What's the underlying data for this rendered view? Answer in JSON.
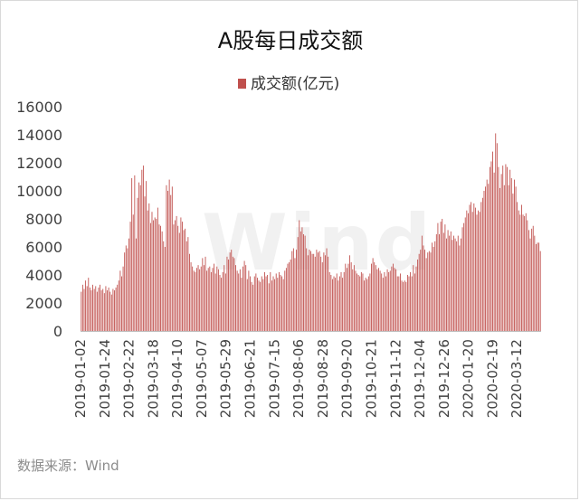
{
  "watermark": "Wind",
  "source": "数据来源：Wind",
  "chart_data": {
    "type": "bar",
    "title": "A股每日成交额",
    "series": [
      {
        "name": "成交额(亿元)",
        "color": "#c0504d"
      }
    ],
    "y_ticks": [
      "0",
      "2000",
      "4000",
      "6000",
      "8000",
      "10000",
      "12000",
      "14000",
      "16000"
    ],
    "ylim": [
      0,
      16000
    ],
    "x_tick_labels": [
      "2019-01-02",
      "2019-01-24",
      "2019-02-22",
      "2019-03-18",
      "2019-04-10",
      "2019-05-07",
      "2019-05-29",
      "2019-06-21",
      "2019-07-15",
      "2019-08-06",
      "2019-08-28",
      "2019-09-20",
      "2019-10-21",
      "2019-11-12",
      "2019-12-04",
      "2019-12-26",
      "2020-01-20",
      "2020-02-19",
      "2020-03-12"
    ],
    "values": [
      2800,
      3300,
      3000,
      3600,
      3200,
      3800,
      3100,
      2900,
      3300,
      3000,
      3200,
      2800,
      3100,
      3300,
      2900,
      3000,
      2700,
      3200,
      2900,
      3100,
      2800,
      2600,
      3000,
      2900,
      3100,
      3300,
      3600,
      4300,
      3900,
      4600,
      5600,
      6100,
      5900,
      6600,
      7800,
      10900,
      8300,
      11100,
      6600,
      9500,
      10600,
      10400,
      11500,
      11800,
      9600,
      10700,
      8600,
      9100,
      7700,
      8500,
      7900,
      8100,
      8000,
      8800,
      7600,
      7500,
      7100,
      6400,
      6000,
      10400,
      10000,
      10800,
      9700,
      10300,
      7600,
      7900,
      8200,
      7500,
      7000,
      8100,
      7800,
      7200,
      7300,
      6400,
      6700,
      5500,
      4900,
      4600,
      4300,
      4200,
      4500,
      4700,
      4400,
      4600,
      5200,
      4700,
      5300,
      4300,
      4500,
      4600,
      4200,
      4500,
      4800,
      4100,
      4600,
      4400,
      4000,
      3800,
      4200,
      4700,
      4100,
      5300,
      5100,
      5600,
      5800,
      5300,
      5200,
      4700,
      4300,
      4100,
      4400,
      3800,
      4600,
      5000,
      4700,
      3700,
      4300,
      3900,
      3500,
      3300,
      3900,
      4100,
      3800,
      3600,
      3500,
      3900,
      3700,
      4200,
      3900,
      4000,
      3400,
      4200,
      3600,
      3900,
      3700,
      4100,
      3800,
      4200,
      4000,
      3900,
      3700,
      4300,
      4500,
      4800,
      4900,
      5100,
      5700,
      5900,
      5200,
      5800,
      6700,
      7900,
      7100,
      7400,
      6900,
      6800,
      5900,
      5400,
      5800,
      5700,
      5500,
      5500,
      5300,
      5800,
      5600,
      5700,
      5300,
      4900,
      5600,
      5400,
      5900,
      5300,
      4200,
      4000,
      3700,
      3900,
      3800,
      4100,
      3600,
      3900,
      4200,
      3800,
      4200,
      4800,
      4500,
      4800,
      5400,
      4900,
      4400,
      4700,
      4300,
      4100,
      4000,
      3900,
      4200,
      4100,
      3600,
      3800,
      3700,
      3900,
      4100,
      4800,
      5200,
      4900,
      4700,
      4400,
      4500,
      4300,
      4100,
      3800,
      4200,
      3900,
      4400,
      4200,
      4300,
      4600,
      4800,
      4500,
      4400,
      3900,
      3900,
      4100,
      3600,
      3500,
      3600,
      3500,
      4000,
      3900,
      4200,
      3900,
      4700,
      4100,
      4600,
      5100,
      5500,
      5800,
      6800,
      6100,
      5800,
      5200,
      5600,
      5700,
      5600,
      6300,
      6000,
      6400,
      6900,
      7700,
      6900,
      7800,
      8000,
      7000,
      7600,
      6600,
      7200,
      6800,
      7100,
      6500,
      6800,
      6600,
      6400,
      6800,
      6100,
      6600,
      7400,
      7700,
      8100,
      8600,
      8400,
      9000,
      9200,
      8500,
      9100,
      8800,
      8300,
      8600,
      8500,
      9200,
      9500,
      10000,
      10300,
      10800,
      10500,
      11700,
      12100,
      12800,
      11300,
      14100,
      13400,
      11700,
      10200,
      11200,
      11800,
      10400,
      11900,
      11700,
      10400,
      11500,
      10900,
      9800,
      10800,
      10300,
      9200,
      8600,
      8300,
      9000,
      8300,
      8200,
      8400,
      7900,
      7200,
      6600,
      7300,
      7500,
      6800,
      6200,
      6300,
      6300,
      5700
    ]
  }
}
